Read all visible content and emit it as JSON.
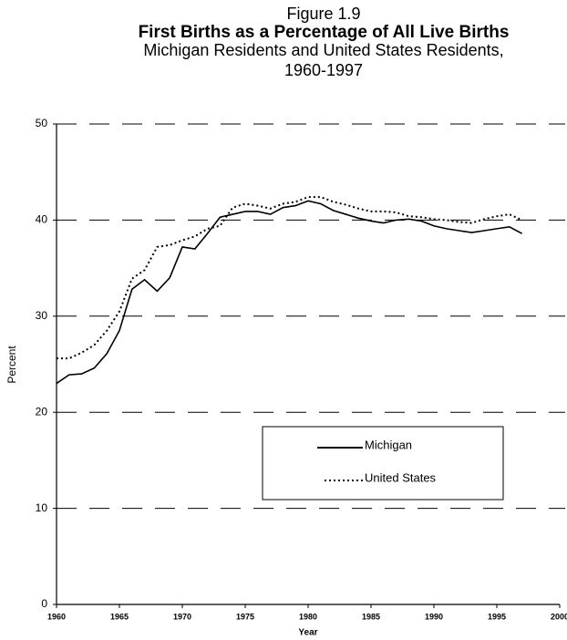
{
  "chart_data": {
    "type": "line",
    "title": "Figure 1.9",
    "subtitle": "First Births as a Percentage of All Live Births",
    "subtitle2": "Michigan Residents and United States Residents,",
    "subtitle3": "1960-1997",
    "x_label": "Year",
    "y_label": "Percent",
    "x": [
      1960,
      1961,
      1962,
      1963,
      1964,
      1965,
      1966,
      1967,
      1968,
      1969,
      1970,
      1971,
      1972,
      1973,
      1974,
      1975,
      1976,
      1977,
      1978,
      1979,
      1980,
      1981,
      1982,
      1983,
      1984,
      1985,
      1986,
      1987,
      1988,
      1989,
      1990,
      1991,
      1992,
      1993,
      1994,
      1995,
      1996,
      1997
    ],
    "series": [
      {
        "name": "Michigan",
        "color": "#000000",
        "style": "solid",
        "values": [
          23.0,
          23.9,
          24.0,
          24.6,
          26.1,
          28.5,
          32.8,
          33.8,
          32.6,
          34.0,
          37.2,
          37.0,
          38.6,
          40.3,
          40.6,
          40.9,
          40.9,
          40.6,
          41.3,
          41.5,
          42.0,
          41.7,
          41.0,
          40.6,
          40.2,
          39.9,
          39.7,
          40.0,
          40.1,
          39.9,
          39.4,
          39.1,
          38.9,
          38.7,
          38.9,
          39.1,
          39.3,
          38.6
        ]
      },
      {
        "name": "United States",
        "color": "#000000",
        "style": "dotted",
        "values": [
          25.6,
          25.6,
          26.2,
          27.0,
          28.5,
          30.5,
          33.9,
          34.8,
          37.2,
          37.4,
          37.9,
          38.3,
          39.1,
          39.4,
          41.3,
          41.7,
          41.5,
          41.2,
          41.7,
          41.9,
          42.4,
          42.4,
          41.9,
          41.6,
          41.2,
          40.9,
          40.9,
          40.8,
          40.4,
          40.3,
          40.1,
          40.0,
          39.8,
          39.7,
          40.1,
          40.4,
          40.6,
          40.0
        ]
      }
    ],
    "xlim": [
      1960,
      2000
    ],
    "xticks": [
      1960,
      1965,
      1970,
      1975,
      1980,
      1985,
      1990,
      1995,
      2000
    ],
    "ylim": [
      0,
      50
    ],
    "yticks": [
      0,
      10,
      20,
      30,
      40,
      50
    ],
    "grid": true
  }
}
